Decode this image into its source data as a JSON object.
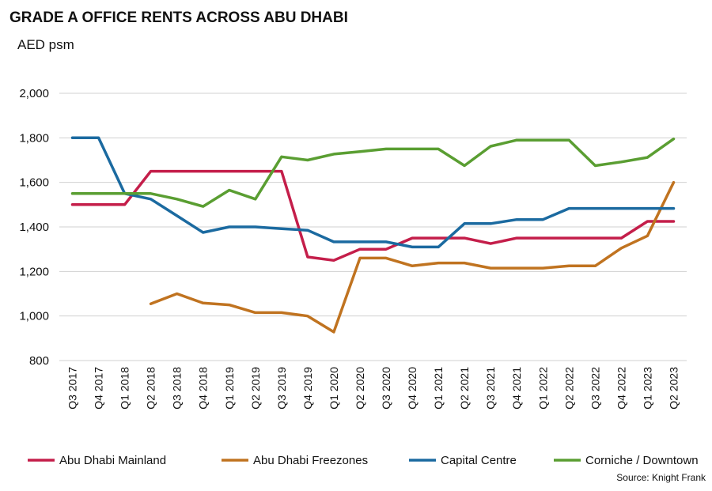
{
  "chart_data": {
    "type": "line",
    "title": "GRADE A OFFICE RENTS ACROSS ABU DHABI",
    "ylabel": "AED psm",
    "source": "Source: Knight Frank",
    "ylim": [
      800,
      2000
    ],
    "yticks": [
      800,
      1000,
      1200,
      1400,
      1600,
      1800,
      2000
    ],
    "ytick_labels": [
      "800",
      "1,000",
      "1,200",
      "1,400",
      "1,600",
      "1,800",
      "2,000"
    ],
    "grid": true,
    "legend_position": "bottom",
    "categories": [
      "Q3 2017",
      "Q4 2017",
      "Q1 2018",
      "Q2 2018",
      "Q3 2018",
      "Q4 2018",
      "Q1 2019",
      "Q2 2019",
      "Q3 2019",
      "Q4 2019",
      "Q1 2020",
      "Q2 2020",
      "Q3 2020",
      "Q4 2020",
      "Q1 2021",
      "Q2 2021",
      "Q3 2021",
      "Q4 2021",
      "Q1 2022",
      "Q2 2022",
      "Q3 2022",
      "Q4 2022",
      "Q1 2023",
      "Q2 2023"
    ],
    "series": [
      {
        "name": "Abu Dhabi Mainland",
        "color": "#c41e4a",
        "values": [
          1500,
          1500,
          1500,
          1650,
          1650,
          1650,
          1650,
          1650,
          1650,
          1265,
          1250,
          1300,
          1300,
          1350,
          1350,
          1350,
          1325,
          1350,
          1350,
          1350,
          1350,
          1350,
          1425,
          1425
        ]
      },
      {
        "name": "Abu Dhabi Freezones",
        "color": "#c07320",
        "values": [
          null,
          null,
          null,
          1055,
          1100,
          1058,
          1050,
          1015,
          1015,
          1000,
          928,
          1260,
          1260,
          1225,
          1238,
          1238,
          1215,
          1215,
          1215,
          1225,
          1225,
          1305,
          1360,
          1600
        ]
      },
      {
        "name": "Capital Centre",
        "color": "#1b6aa0",
        "values": [
          1800,
          1800,
          1550,
          1525,
          1450,
          1375,
          1400,
          1400,
          1392,
          1385,
          1333,
          1333,
          1333,
          1310,
          1310,
          1415,
          1415,
          1433,
          1433,
          1483,
          1483,
          1483,
          1483,
          1483
        ]
      },
      {
        "name": "Corniche / Downtown",
        "color": "#5a9e32",
        "values": [
          1550,
          1550,
          1550,
          1550,
          1525,
          1492,
          1565,
          1525,
          1715,
          1700,
          1727,
          1738,
          1750,
          1750,
          1750,
          1675,
          1762,
          1790,
          1790,
          1790,
          1675,
          1692,
          1712,
          1795
        ]
      }
    ]
  }
}
